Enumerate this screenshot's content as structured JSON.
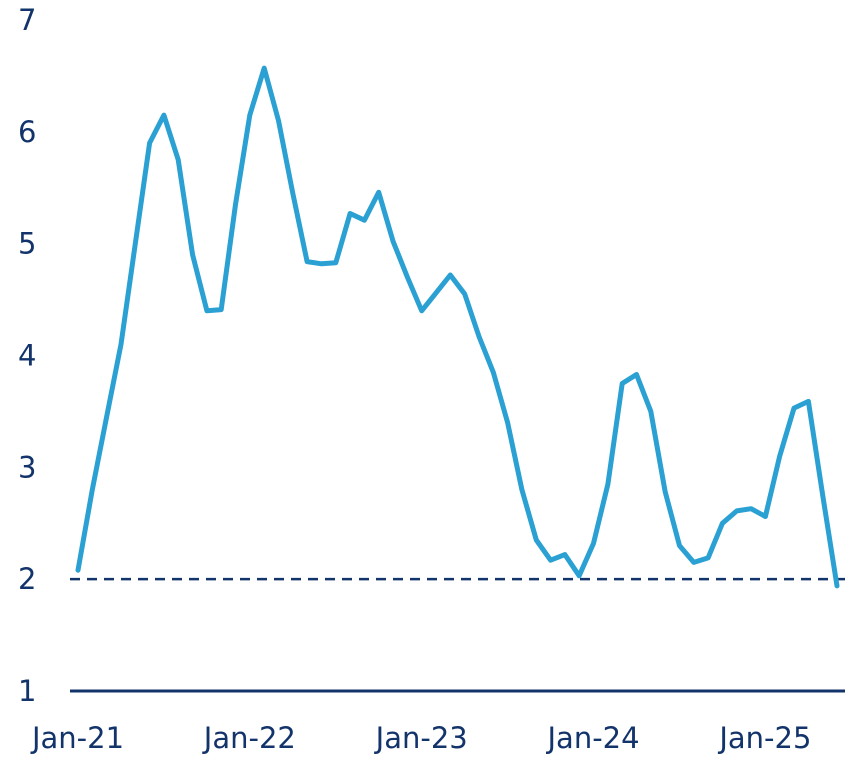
{
  "chart_data": {
    "type": "line",
    "x": [
      "2021-01",
      "2021-02",
      "2021-03",
      "2021-04",
      "2021-05",
      "2021-06",
      "2021-07",
      "2021-08",
      "2021-09",
      "2021-10",
      "2021-11",
      "2021-12",
      "2022-01",
      "2022-02",
      "2022-03",
      "2022-04",
      "2022-05",
      "2022-06",
      "2022-07",
      "2022-08",
      "2022-09",
      "2022-10",
      "2022-11",
      "2022-12",
      "2023-01",
      "2023-02",
      "2023-03",
      "2023-04",
      "2023-05",
      "2023-06",
      "2023-07",
      "2023-08",
      "2023-09",
      "2023-10",
      "2023-11",
      "2023-12",
      "2024-01",
      "2024-02",
      "2024-03",
      "2024-04",
      "2024-05",
      "2024-06",
      "2024-07",
      "2024-08",
      "2024-09",
      "2024-10",
      "2024-11",
      "2024-12",
      "2025-01",
      "2025-02",
      "2025-03",
      "2025-04",
      "2025-05",
      "2025-06"
    ],
    "series": [
      {
        "values": [
          2.08,
          2.8,
          3.45,
          4.1,
          5.0,
          5.9,
          6.15,
          5.75,
          4.9,
          4.4,
          4.41,
          5.35,
          6.15,
          6.57,
          6.1,
          5.45,
          4.84,
          4.82,
          4.83,
          5.27,
          5.21,
          5.46,
          5.02,
          4.7,
          4.4,
          4.56,
          4.72,
          4.55,
          4.17,
          3.85,
          3.4,
          2.8,
          2.35,
          2.17,
          2.22,
          2.03,
          2.32,
          2.85,
          3.75,
          3.83,
          3.5,
          2.78,
          2.3,
          2.15,
          2.19,
          2.5,
          2.61,
          2.63,
          2.56,
          3.1,
          3.53,
          3.59,
          2.75,
          1.94
        ]
      }
    ],
    "x_tick_labels": [
      "Jan-21",
      "Jan-22",
      "Jan-23",
      "Jan-24",
      "Jan-25"
    ],
    "x_ticks": [
      "2021-01",
      "2022-01",
      "2023-01",
      "2024-01",
      "2025-01"
    ],
    "y_ticks": [
      1,
      2,
      3,
      4,
      5,
      6,
      7
    ],
    "ylim": [
      1,
      7
    ],
    "reference_line": {
      "y": 2,
      "style": "dashed"
    },
    "grid": false,
    "legend": "none",
    "title": "",
    "xlabel": "",
    "ylabel": "",
    "colors": {
      "series": "#2aa0d3",
      "axis": "#13336b",
      "text": "#13336b"
    }
  }
}
